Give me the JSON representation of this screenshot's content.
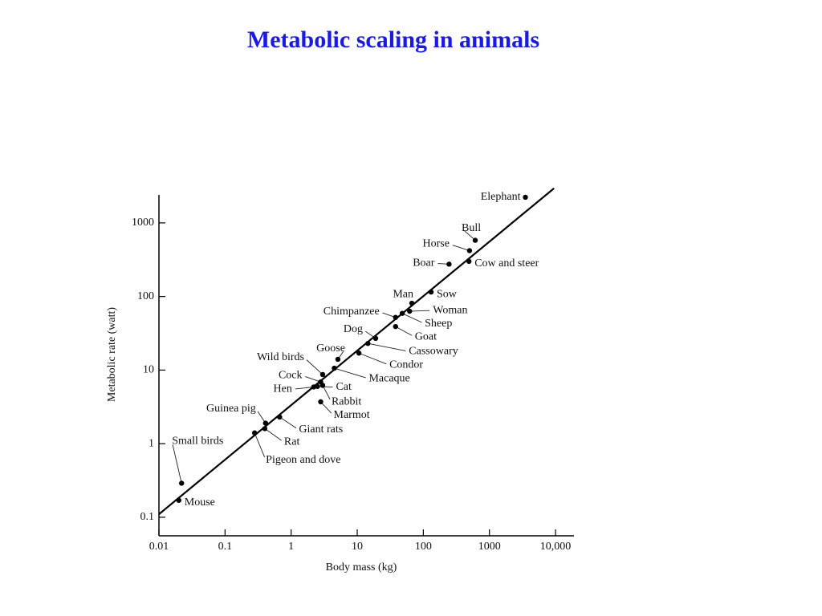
{
  "chart_data": {
    "type": "scatter",
    "title": "Metabolic scaling in animals",
    "x_label": "Body mass (kg)",
    "y_label": "Metabolic rate (watt)",
    "log_x": true,
    "log_y": true,
    "color": "#000000",
    "title_color": "#1a1ae6",
    "xlim": [
      0.01,
      19000
    ],
    "ylim": [
      0.056,
      2400
    ],
    "xticks": [
      0.01,
      0.1,
      1,
      10,
      100,
      1000,
      {
        "value": 10000,
        "label": "10,000"
      }
    ],
    "yticks": [
      0.1,
      1,
      10,
      100,
      1000
    ],
    "labels": [
      "Mouse",
      "Small birds",
      "Pigeon and dove",
      "Rat",
      "Guinea pig",
      "Giant rats",
      "Marmot",
      "Hen",
      "Cat",
      "Cock",
      "Rabbit",
      "Wild birds",
      "Macaque",
      "Goose",
      "Condor",
      "Cassowary",
      "Dog",
      "Goat",
      "Chimpanzee",
      "Sheep",
      "Woman",
      "Man",
      "Sow",
      "Boar",
      "Cow and steer",
      "Horse",
      "Bull",
      "Elephant"
    ],
    "x": [
      0.02,
      0.022,
      0.28,
      0.4,
      0.41,
      0.67,
      2.8,
      2.2,
      2.5,
      2.8,
      3.0,
      3.0,
      4.5,
      5.1,
      10.6,
      14.5,
      19,
      38,
      38,
      48,
      62,
      67,
      131,
      245,
      490,
      500,
      610,
      3500
    ],
    "y": [
      0.17,
      0.29,
      1.4,
      1.6,
      1.9,
      2.3,
      3.7,
      5.9,
      6.0,
      6.9,
      6.2,
      8.7,
      10.6,
      14,
      17,
      23,
      27,
      39,
      52,
      59,
      63,
      81,
      115,
      275,
      300,
      420,
      580,
      2230
    ],
    "fit_line": {
      "x": [
        0.01,
        9500
      ],
      "y": [
        0.11,
        2950
      ]
    }
  }
}
